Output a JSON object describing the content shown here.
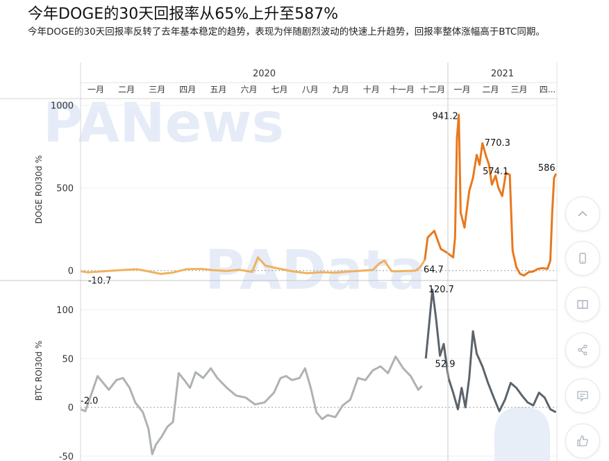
{
  "article": {
    "title": "今年DOGE的30天回报率从65%上升至587%",
    "subtitle": "今年DOGE的30天回报率反转了去年基本稳定的趋势，表现为伴随剧烈波动的快速上升趋势，回报率整体涨幅高于BTC同期。"
  },
  "watermarks": [
    "PANews",
    "PAData"
  ],
  "chart_data": {
    "type": "line",
    "years": [
      "2020",
      "2021"
    ],
    "months": [
      "一月",
      "二月",
      "三月",
      "四月",
      "五月",
      "六月",
      "七月",
      "八月",
      "九月",
      "十月",
      "十一月",
      "十二月",
      "一月",
      "二月",
      "三月",
      "四..."
    ],
    "panels": [
      {
        "ylabel": "DOGE ROI30d %",
        "ylim": [
          -60,
          1040
        ],
        "yticks": [
          0,
          500,
          1000
        ],
        "color_2020": "#f0b25c",
        "color_2021": "#e8781e",
        "series": [
          [
            0,
            -4
          ],
          [
            8,
            -10.7
          ],
          [
            20,
            -6
          ],
          [
            35,
            0
          ],
          [
            50,
            5
          ],
          [
            60,
            8
          ],
          [
            72,
            -5
          ],
          [
            85,
            -20
          ],
          [
            98,
            -12
          ],
          [
            112,
            8
          ],
          [
            128,
            10
          ],
          [
            140,
            3
          ],
          [
            155,
            -3
          ],
          [
            168,
            5
          ],
          [
            182,
            -8
          ],
          [
            188,
            80
          ],
          [
            196,
            30
          ],
          [
            210,
            12
          ],
          [
            225,
            -5
          ],
          [
            240,
            -16
          ],
          [
            255,
            -10
          ],
          [
            270,
            -13
          ],
          [
            285,
            -6
          ],
          [
            300,
            0
          ],
          [
            310,
            4
          ],
          [
            316,
            40
          ],
          [
            322,
            60.2
          ],
          [
            330,
            -5
          ],
          [
            345,
            -3
          ],
          [
            355,
            -1
          ],
          [
            360,
            20
          ],
          [
            365,
            64.7
          ],
          [
            368,
            200
          ],
          [
            375,
            240
          ],
          [
            382,
            130
          ],
          [
            388,
            110
          ],
          [
            395,
            80
          ],
          [
            397,
            200
          ],
          [
            399,
            800
          ],
          [
            401,
            941.2
          ],
          [
            403,
            350
          ],
          [
            407,
            260
          ],
          [
            412,
            480
          ],
          [
            416,
            560
          ],
          [
            420,
            700
          ],
          [
            423,
            640
          ],
          [
            426,
            770.3
          ],
          [
            430,
            690
          ],
          [
            433,
            640
          ],
          [
            436,
            520
          ],
          [
            440,
            574.1
          ],
          [
            443,
            500
          ],
          [
            447,
            450
          ],
          [
            451,
            590
          ],
          [
            455,
            580
          ],
          [
            458,
            120
          ],
          [
            462,
            20
          ],
          [
            466,
            -20
          ],
          [
            470,
            -30
          ],
          [
            475,
            -10
          ],
          [
            480,
            -5
          ],
          [
            485,
            10
          ],
          [
            490,
            15
          ],
          [
            495,
            10
          ],
          [
            498,
            60
          ],
          [
            500,
            350
          ],
          [
            502,
            560
          ],
          [
            504,
            586
          ]
        ],
        "labels": [
          {
            "x": 8,
            "y": -10.7,
            "text": "-10.7"
          },
          {
            "x": 365,
            "y": 64.7,
            "text": "64.7"
          },
          {
            "x": 401,
            "y": 941.2,
            "text": "941.2"
          },
          {
            "x": 426,
            "y": 770.3,
            "text": "770.3"
          },
          {
            "x": 440,
            "y": 574.1,
            "text": "574.1"
          },
          {
            "x": 504,
            "y": 586,
            "text": "586"
          }
        ]
      },
      {
        "ylabel": "BTC ROI30d %",
        "ylim": [
          -55,
          130
        ],
        "yticks": [
          -50,
          0,
          50,
          100
        ],
        "color_2020": "#aeb2b4",
        "color_2021": "#5b636b",
        "series": [
          [
            0,
            -2.0
          ],
          [
            5,
            -4
          ],
          [
            12,
            15
          ],
          [
            18,
            32
          ],
          [
            24,
            25
          ],
          [
            30,
            18
          ],
          [
            38,
            28
          ],
          [
            45,
            30
          ],
          [
            52,
            20
          ],
          [
            58,
            5
          ],
          [
            66,
            -5
          ],
          [
            72,
            -22
          ],
          [
            76,
            -48
          ],
          [
            80,
            -38
          ],
          [
            86,
            -30
          ],
          [
            92,
            -20
          ],
          [
            98,
            -15
          ],
          [
            104,
            35
          ],
          [
            110,
            28
          ],
          [
            116,
            20
          ],
          [
            122,
            36
          ],
          [
            130,
            30
          ],
          [
            138,
            40
          ],
          [
            145,
            30
          ],
          [
            155,
            20
          ],
          [
            165,
            12
          ],
          [
            175,
            10
          ],
          [
            185,
            3
          ],
          [
            195,
            5
          ],
          [
            205,
            15
          ],
          [
            212,
            30
          ],
          [
            218,
            32
          ],
          [
            224,
            28
          ],
          [
            232,
            30
          ],
          [
            238,
            40
          ],
          [
            244,
            20
          ],
          [
            250,
            -5
          ],
          [
            256,
            -12
          ],
          [
            262,
            -8
          ],
          [
            270,
            -10
          ],
          [
            278,
            2
          ],
          [
            286,
            8
          ],
          [
            294,
            30
          ],
          [
            302,
            28
          ],
          [
            310,
            38
          ],
          [
            318,
            42
          ],
          [
            326,
            35
          ],
          [
            334,
            52
          ],
          [
            342,
            40
          ],
          [
            350,
            32
          ],
          [
            358,
            18
          ],
          [
            362,
            22
          ],
          [
            366,
            50
          ],
          [
            369,
            80
          ],
          [
            373,
            120.7
          ],
          [
            377,
            90
          ],
          [
            381,
            52.9
          ],
          [
            385,
            65
          ],
          [
            390,
            30
          ],
          [
            395,
            15
          ],
          [
            400,
            -2
          ],
          [
            404,
            20
          ],
          [
            408,
            0
          ],
          [
            412,
            30
          ],
          [
            416,
            78
          ],
          [
            420,
            55
          ],
          [
            426,
            42
          ],
          [
            432,
            25
          ],
          [
            438,
            10
          ],
          [
            444,
            -4
          ],
          [
            450,
            8
          ],
          [
            456,
            25
          ],
          [
            462,
            20
          ],
          [
            468,
            12
          ],
          [
            474,
            5
          ],
          [
            480,
            2
          ],
          [
            486,
            15
          ],
          [
            492,
            10
          ],
          [
            498,
            -2
          ],
          [
            504,
            -5
          ]
        ],
        "labels": [
          {
            "x": 0,
            "y": -2.0,
            "text": "-2.0"
          },
          {
            "x": 373,
            "y": 120.7,
            "text": "120.7"
          },
          {
            "x": 381,
            "y": 52.9,
            "text": "52.9"
          }
        ]
      }
    ]
  },
  "sidebar": {
    "buttons": [
      {
        "name": "scroll-top",
        "icon": "chevron-up-icon"
      },
      {
        "name": "mobile-view",
        "icon": "phone-icon"
      },
      {
        "name": "reader-mode",
        "icon": "book-icon"
      },
      {
        "name": "share",
        "icon": "share-icon"
      },
      {
        "name": "comment",
        "icon": "comment-icon"
      },
      {
        "name": "like",
        "icon": "thumbs-up-icon"
      }
    ]
  }
}
